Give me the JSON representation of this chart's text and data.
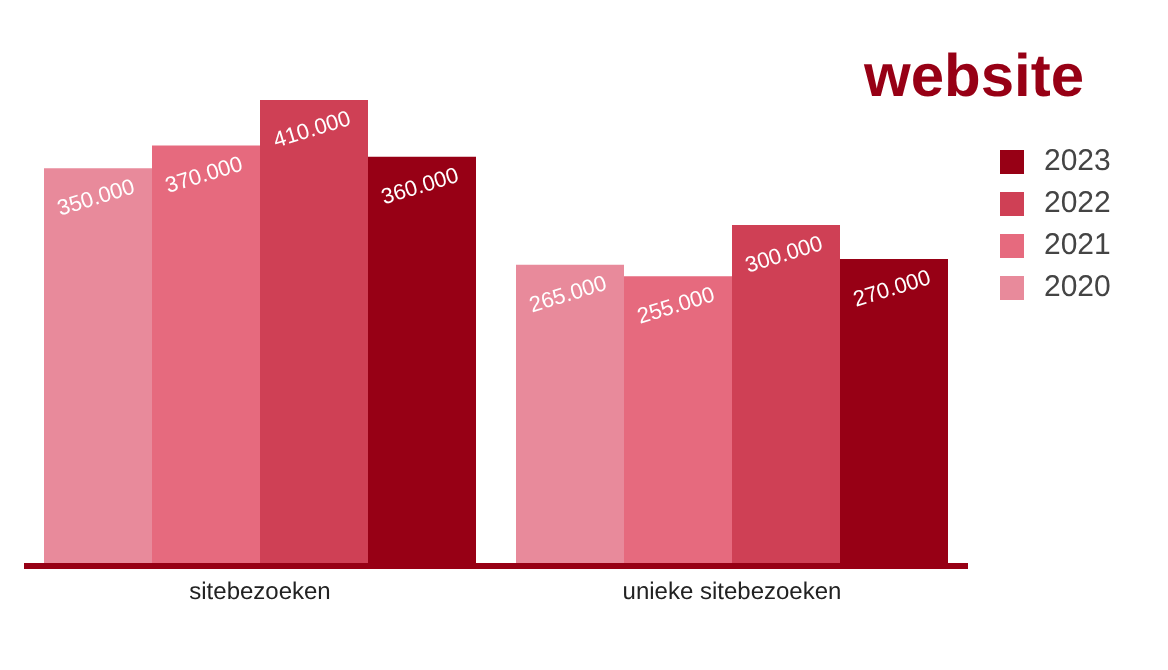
{
  "chart_data": {
    "type": "bar",
    "title": "website",
    "categories": [
      "sitebezoeken",
      "unieke sitebezoeken"
    ],
    "series": [
      {
        "name": "2020",
        "color": "#e88a9b",
        "values": [
          350000,
          265000
        ],
        "value_labels": [
          "350.000",
          "265.000"
        ]
      },
      {
        "name": "2021",
        "color": "#e66a7e",
        "values": [
          370000,
          255000
        ],
        "value_labels": [
          "370.000",
          "255.000"
        ]
      },
      {
        "name": "2022",
        "color": "#cf4055",
        "values": [
          410000,
          300000
        ],
        "value_labels": [
          "410.000",
          "300.000"
        ]
      },
      {
        "name": "2023",
        "color": "#970015",
        "values": [
          360000,
          270000
        ],
        "value_labels": [
          "360.000",
          "270.000"
        ]
      }
    ],
    "legend": "top right",
    "grid": false
  }
}
